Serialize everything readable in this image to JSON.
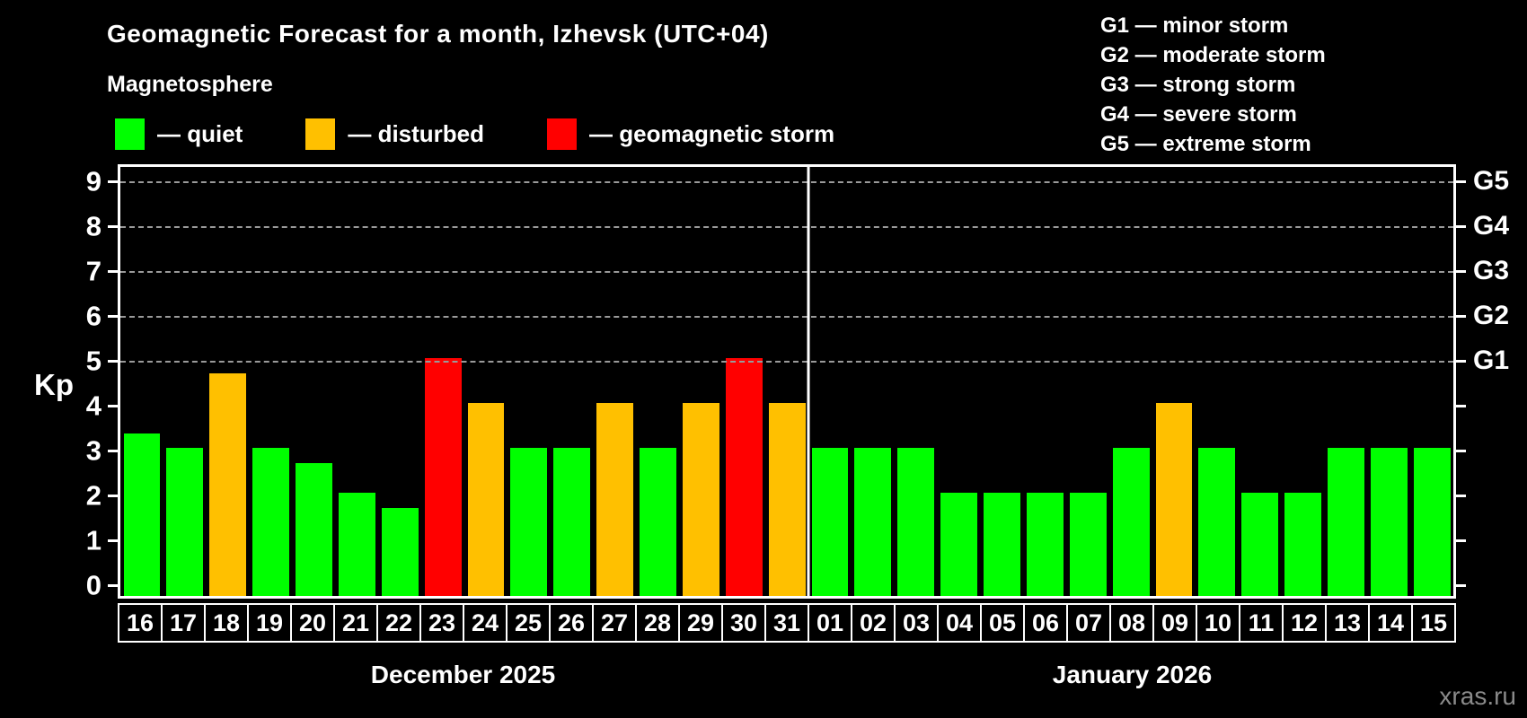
{
  "header": {
    "title": "Geomagnetic Forecast for a month, Izhevsk (UTC+04)",
    "subtitle": "Magnetosphere"
  },
  "legend": {
    "items": [
      {
        "status": "quiet",
        "label": "— quiet",
        "color": "#00ff00"
      },
      {
        "status": "disturbed",
        "label": "— disturbed",
        "color": "#ffc000"
      },
      {
        "status": "storm",
        "label": "— geomagnetic storm",
        "color": "#ff0000"
      }
    ]
  },
  "storm_scale_legend": [
    "G1 — minor storm",
    "G2 — moderate storm",
    "G3 — strong storm",
    "G4 — severe storm",
    "G5 — extreme storm"
  ],
  "y_axis": {
    "label": "Kp",
    "ticks": [
      0,
      1,
      2,
      3,
      4,
      5,
      6,
      7,
      8,
      9
    ]
  },
  "right_axis": {
    "ticks": [
      0,
      1,
      2,
      3,
      4,
      5,
      6,
      7,
      8,
      9
    ],
    "labels": [
      {
        "label": "G5",
        "kp": 9
      },
      {
        "label": "G4",
        "kp": 8
      },
      {
        "label": "G3",
        "kp": 7
      },
      {
        "label": "G2",
        "kp": 6
      },
      {
        "label": "G1",
        "kp": 5
      }
    ]
  },
  "colors": {
    "quiet": "#00ff00",
    "disturbed": "#ffc000",
    "storm": "#ff0000",
    "background": "#000000",
    "grid": "#9a9a9a"
  },
  "watermark": "xras.ru",
  "chart_data": {
    "type": "bar",
    "title": "Geomagnetic Forecast for a month, Izhevsk (UTC+04)",
    "xlabel": "",
    "ylabel": "Kp",
    "ylim": [
      0,
      9.4
    ],
    "gridlines_kp": [
      5,
      6,
      7,
      8,
      9
    ],
    "grid": "dashed horizontal lines at storm levels G1–G5",
    "legend_position": "top",
    "groups": [
      {
        "month_label": "December 2025",
        "days": [
          {
            "date": "16",
            "kp": 3.33,
            "status": "quiet"
          },
          {
            "date": "17",
            "kp": 3,
            "status": "quiet"
          },
          {
            "date": "18",
            "kp": 4.67,
            "status": "disturbed"
          },
          {
            "date": "19",
            "kp": 3,
            "status": "quiet"
          },
          {
            "date": "20",
            "kp": 2.67,
            "status": "quiet"
          },
          {
            "date": "21",
            "kp": 2,
            "status": "quiet"
          },
          {
            "date": "22",
            "kp": 1.67,
            "status": "quiet"
          },
          {
            "date": "23",
            "kp": 5,
            "status": "storm"
          },
          {
            "date": "24",
            "kp": 4,
            "status": "disturbed"
          },
          {
            "date": "25",
            "kp": 3,
            "status": "quiet"
          },
          {
            "date": "26",
            "kp": 3,
            "status": "quiet"
          },
          {
            "date": "27",
            "kp": 4,
            "status": "disturbed"
          },
          {
            "date": "28",
            "kp": 3,
            "status": "quiet"
          },
          {
            "date": "29",
            "kp": 4,
            "status": "disturbed"
          },
          {
            "date": "30",
            "kp": 5,
            "status": "storm"
          },
          {
            "date": "31",
            "kp": 4,
            "status": "disturbed"
          }
        ]
      },
      {
        "month_label": "January 2026",
        "days": [
          {
            "date": "01",
            "kp": 3,
            "status": "quiet"
          },
          {
            "date": "02",
            "kp": 3,
            "status": "quiet"
          },
          {
            "date": "03",
            "kp": 3,
            "status": "quiet"
          },
          {
            "date": "04",
            "kp": 2,
            "status": "quiet"
          },
          {
            "date": "05",
            "kp": 2,
            "status": "quiet"
          },
          {
            "date": "06",
            "kp": 2,
            "status": "quiet"
          },
          {
            "date": "07",
            "kp": 2,
            "status": "quiet"
          },
          {
            "date": "08",
            "kp": 3,
            "status": "quiet"
          },
          {
            "date": "09",
            "kp": 4,
            "status": "disturbed"
          },
          {
            "date": "10",
            "kp": 3,
            "status": "quiet"
          },
          {
            "date": "11",
            "kp": 2,
            "status": "quiet"
          },
          {
            "date": "12",
            "kp": 2,
            "status": "quiet"
          },
          {
            "date": "13",
            "kp": 3,
            "status": "quiet"
          },
          {
            "date": "14",
            "kp": 3,
            "status": "quiet"
          },
          {
            "date": "15",
            "kp": 3,
            "status": "quiet"
          }
        ]
      }
    ]
  }
}
